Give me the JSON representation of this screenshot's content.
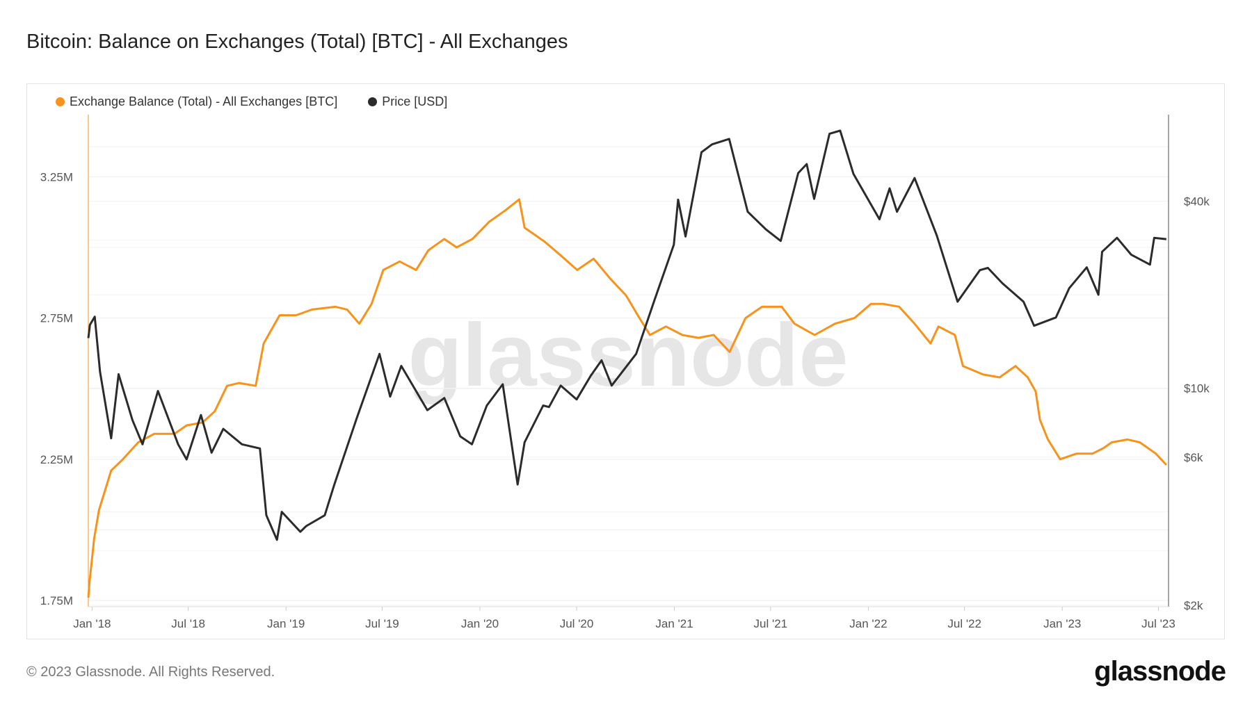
{
  "title": "Bitcoin: Balance on Exchanges (Total) [BTC] - All Exchanges",
  "footer": {
    "copyright": "© 2023 Glassnode. All Rights Reserved.",
    "logo": "glassnode"
  },
  "watermark": "glassnode",
  "colors": {
    "balance": "#f7931a",
    "price": "#2b2b2b"
  },
  "legend": [
    {
      "label": "Exchange Balance (Total) - All Exchanges [BTC]",
      "color": "#f7931a",
      "icon": "dot-icon"
    },
    {
      "label": "Price [USD]",
      "color": "#2b2b2b",
      "icon": "dot-icon"
    }
  ],
  "chart_data": {
    "type": "line",
    "title": "Bitcoin: Balance on Exchanges (Total) [BTC] - All Exchanges",
    "grid": true,
    "legend_position": "top-left",
    "x_range": [
      "2017-12-25",
      "2023-07-20"
    ],
    "x_ticks": [
      {
        "date": "2018-01-01",
        "label": "Jan '18"
      },
      {
        "date": "2018-07-01",
        "label": "Jul '18"
      },
      {
        "date": "2019-01-01",
        "label": "Jan '19"
      },
      {
        "date": "2019-07-01",
        "label": "Jul '19"
      },
      {
        "date": "2020-01-01",
        "label": "Jan '20"
      },
      {
        "date": "2020-07-01",
        "label": "Jul '20"
      },
      {
        "date": "2021-01-01",
        "label": "Jan '21"
      },
      {
        "date": "2021-07-01",
        "label": "Jul '21"
      },
      {
        "date": "2022-01-01",
        "label": "Jan '22"
      },
      {
        "date": "2022-07-01",
        "label": "Jul '22"
      },
      {
        "date": "2023-01-01",
        "label": "Jan '23"
      },
      {
        "date": "2023-07-01",
        "label": "Jul '23"
      }
    ],
    "y_left": {
      "scale": "linear",
      "range": [
        1.728,
        3.47
      ],
      "unit": "M BTC",
      "ticks": [
        {
          "value": 1.75,
          "label": "1.75M"
        },
        {
          "value": 2.25,
          "label": "2.25M"
        },
        {
          "value": 2.75,
          "label": "2.75M"
        },
        {
          "value": 3.25,
          "label": "3.25M"
        }
      ]
    },
    "y_right": {
      "scale": "log",
      "range": [
        1980,
        76000
      ],
      "unit": "USD",
      "ticks": [
        {
          "value": 2000,
          "label": "$2k"
        },
        {
          "value": 6000,
          "label": "$6k"
        },
        {
          "value": 10000,
          "label": "$10k"
        },
        {
          "value": 40000,
          "label": "$40k"
        }
      ]
    },
    "series": [
      {
        "name": "Exchange Balance (Total) - All Exchanges [BTC]",
        "axis": "left",
        "color": "#f7931a",
        "points": [
          [
            "2017-12-25",
            1.76
          ],
          [
            "2017-12-27",
            1.81
          ],
          [
            "2018-01-05",
            1.97
          ],
          [
            "2018-01-14",
            2.07
          ],
          [
            "2018-02-06",
            2.21
          ],
          [
            "2018-02-28",
            2.25
          ],
          [
            "2018-03-29",
            2.31
          ],
          [
            "2018-04-28",
            2.34
          ],
          [
            "2018-06-05",
            2.34
          ],
          [
            "2018-06-28",
            2.37
          ],
          [
            "2018-07-28",
            2.38
          ],
          [
            "2018-08-20",
            2.42
          ],
          [
            "2018-09-12",
            2.51
          ],
          [
            "2018-10-05",
            2.52
          ],
          [
            "2018-11-05",
            2.51
          ],
          [
            "2018-11-20",
            2.66
          ],
          [
            "2018-12-20",
            2.76
          ],
          [
            "2019-01-20",
            2.76
          ],
          [
            "2019-02-19",
            2.78
          ],
          [
            "2019-04-04",
            2.79
          ],
          [
            "2019-04-26",
            2.78
          ],
          [
            "2019-05-19",
            2.73
          ],
          [
            "2019-06-11",
            2.8
          ],
          [
            "2019-07-03",
            2.92
          ],
          [
            "2019-08-03",
            2.95
          ],
          [
            "2019-09-03",
            2.92
          ],
          [
            "2019-09-26",
            2.99
          ],
          [
            "2019-10-26",
            3.03
          ],
          [
            "2019-11-18",
            3.0
          ],
          [
            "2019-12-18",
            3.03
          ],
          [
            "2020-01-18",
            3.09
          ],
          [
            "2020-02-17",
            3.13
          ],
          [
            "2020-03-15",
            3.17
          ],
          [
            "2020-03-25",
            3.07
          ],
          [
            "2020-05-02",
            3.02
          ],
          [
            "2020-06-02",
            2.97
          ],
          [
            "2020-07-02",
            2.92
          ],
          [
            "2020-08-02",
            2.96
          ],
          [
            "2020-09-02",
            2.89
          ],
          [
            "2020-10-02",
            2.83
          ],
          [
            "2020-10-24",
            2.76
          ],
          [
            "2020-11-16",
            2.69
          ],
          [
            "2020-12-16",
            2.72
          ],
          [
            "2021-01-16",
            2.69
          ],
          [
            "2021-02-15",
            2.68
          ],
          [
            "2021-03-16",
            2.69
          ],
          [
            "2021-04-15",
            2.63
          ],
          [
            "2021-05-15",
            2.75
          ],
          [
            "2021-06-15",
            2.79
          ],
          [
            "2021-07-22",
            2.79
          ],
          [
            "2021-08-15",
            2.73
          ],
          [
            "2021-09-22",
            2.69
          ],
          [
            "2021-10-30",
            2.73
          ],
          [
            "2021-12-06",
            2.75
          ],
          [
            "2022-01-06",
            2.8
          ],
          [
            "2022-01-29",
            2.8
          ],
          [
            "2022-02-28",
            2.79
          ],
          [
            "2022-03-29",
            2.73
          ],
          [
            "2022-04-28",
            2.66
          ],
          [
            "2022-05-13",
            2.72
          ],
          [
            "2022-06-13",
            2.69
          ],
          [
            "2022-06-28",
            2.58
          ],
          [
            "2022-08-05",
            2.55
          ],
          [
            "2022-09-05",
            2.54
          ],
          [
            "2022-10-05",
            2.58
          ],
          [
            "2022-10-28",
            2.54
          ],
          [
            "2022-11-12",
            2.49
          ],
          [
            "2022-11-20",
            2.39
          ],
          [
            "2022-12-05",
            2.32
          ],
          [
            "2022-12-28",
            2.25
          ],
          [
            "2023-01-28",
            2.27
          ],
          [
            "2023-02-27",
            2.27
          ],
          [
            "2023-03-20",
            2.29
          ],
          [
            "2023-04-04",
            2.31
          ],
          [
            "2023-05-04",
            2.32
          ],
          [
            "2023-05-27",
            2.31
          ],
          [
            "2023-06-26",
            2.27
          ],
          [
            "2023-07-16",
            2.23
          ]
        ]
      },
      {
        "name": "Price [USD]",
        "axis": "right",
        "color": "#2b2b2b",
        "points": [
          [
            "2017-12-25",
            14500
          ],
          [
            "2017-12-28",
            16000
          ],
          [
            "2018-01-06",
            17000
          ],
          [
            "2018-01-16",
            11300
          ],
          [
            "2018-02-06",
            6900
          ],
          [
            "2018-02-20",
            11100
          ],
          [
            "2018-03-18",
            7900
          ],
          [
            "2018-04-06",
            6600
          ],
          [
            "2018-05-05",
            9800
          ],
          [
            "2018-06-12",
            6600
          ],
          [
            "2018-06-28",
            5900
          ],
          [
            "2018-07-25",
            8200
          ],
          [
            "2018-08-14",
            6200
          ],
          [
            "2018-09-05",
            7400
          ],
          [
            "2018-10-10",
            6600
          ],
          [
            "2018-11-13",
            6400
          ],
          [
            "2018-11-25",
            3900
          ],
          [
            "2018-12-15",
            3250
          ],
          [
            "2018-12-24",
            4000
          ],
          [
            "2019-01-28",
            3450
          ],
          [
            "2019-02-08",
            3600
          ],
          [
            "2019-03-15",
            3900
          ],
          [
            "2019-04-02",
            4900
          ],
          [
            "2019-05-14",
            8000
          ],
          [
            "2019-06-26",
            12900
          ],
          [
            "2019-07-16",
            9400
          ],
          [
            "2019-08-06",
            11800
          ],
          [
            "2019-09-24",
            8500
          ],
          [
            "2019-10-26",
            9300
          ],
          [
            "2019-11-25",
            7000
          ],
          [
            "2019-12-17",
            6600
          ],
          [
            "2020-01-14",
            8800
          ],
          [
            "2020-02-13",
            10300
          ],
          [
            "2020-03-12",
            4900
          ],
          [
            "2020-03-25",
            6700
          ],
          [
            "2020-04-29",
            8800
          ],
          [
            "2020-05-10",
            8700
          ],
          [
            "2020-06-01",
            10200
          ],
          [
            "2020-07-01",
            9200
          ],
          [
            "2020-07-28",
            11000
          ],
          [
            "2020-08-17",
            12300
          ],
          [
            "2020-09-05",
            10200
          ],
          [
            "2020-10-21",
            12900
          ],
          [
            "2020-11-24",
            19100
          ],
          [
            "2020-12-31",
            29000
          ],
          [
            "2021-01-08",
            40500
          ],
          [
            "2021-01-22",
            30800
          ],
          [
            "2021-02-21",
            57500
          ],
          [
            "2021-03-13",
            61000
          ],
          [
            "2021-04-14",
            63500
          ],
          [
            "2021-05-19",
            37000
          ],
          [
            "2021-06-22",
            32500
          ],
          [
            "2021-07-20",
            29800
          ],
          [
            "2021-08-22",
            49300
          ],
          [
            "2021-09-07",
            52700
          ],
          [
            "2021-09-21",
            40700
          ],
          [
            "2021-10-20",
            66000
          ],
          [
            "2021-11-09",
            67500
          ],
          [
            "2021-12-04",
            49000
          ],
          [
            "2022-01-22",
            35000
          ],
          [
            "2022-02-10",
            44000
          ],
          [
            "2022-02-24",
            37000
          ],
          [
            "2022-03-29",
            47500
          ],
          [
            "2022-05-10",
            31000
          ],
          [
            "2022-06-18",
            19000
          ],
          [
            "2022-07-30",
            24000
          ],
          [
            "2022-08-14",
            24400
          ],
          [
            "2022-09-10",
            21800
          ],
          [
            "2022-10-20",
            19000
          ],
          [
            "2022-11-09",
            15900
          ],
          [
            "2022-12-20",
            16900
          ],
          [
            "2023-01-14",
            21000
          ],
          [
            "2023-02-16",
            24500
          ],
          [
            "2023-03-10",
            20000
          ],
          [
            "2023-03-17",
            27500
          ],
          [
            "2023-04-14",
            30500
          ],
          [
            "2023-05-11",
            26900
          ],
          [
            "2023-06-15",
            25000
          ],
          [
            "2023-06-23",
            30500
          ],
          [
            "2023-07-16",
            30200
          ]
        ]
      }
    ]
  }
}
